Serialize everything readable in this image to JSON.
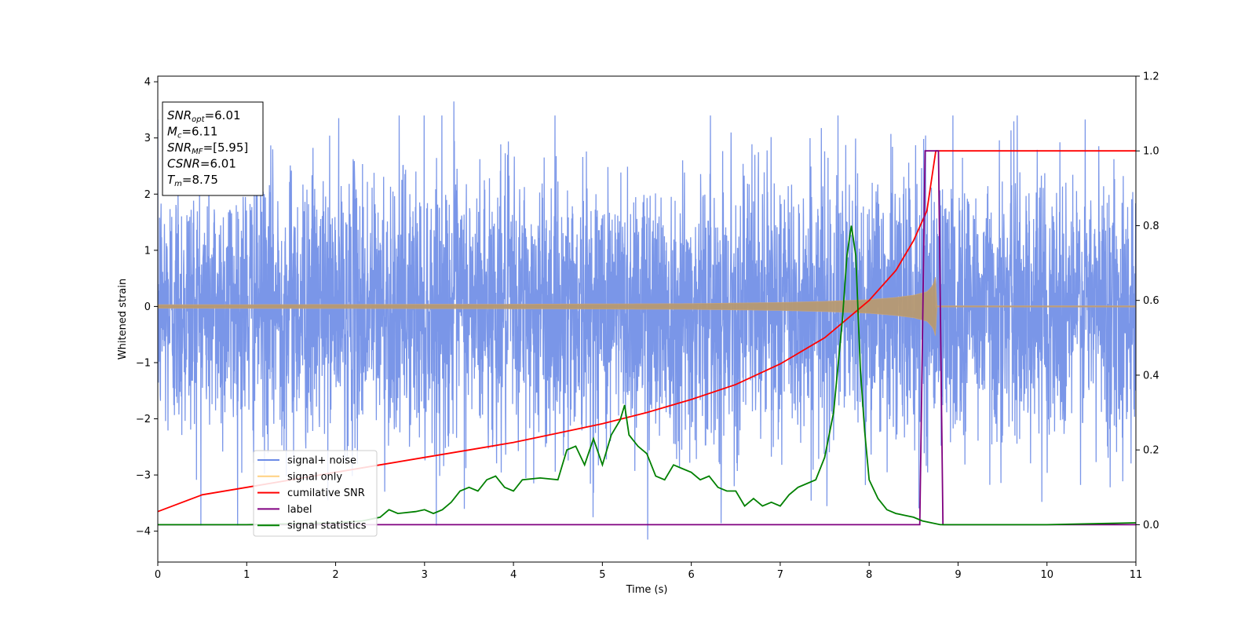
{
  "chart_data": {
    "type": "line",
    "xlabel": "Time (s)",
    "ylabel": "Whitened strain",
    "xlim": [
      0,
      11
    ],
    "ylim_left": [
      -4.55,
      4.1
    ],
    "ylim_right": [
      -0.1,
      1.2
    ],
    "x_ticks": [
      "0",
      "1",
      "2",
      "3",
      "4",
      "5",
      "6",
      "7",
      "8",
      "9",
      "10",
      "11"
    ],
    "y_ticks_left": [
      "−4",
      "−3",
      "−2",
      "−1",
      "0",
      "1",
      "2",
      "3",
      "4"
    ],
    "y_tick_values_left": [
      -4,
      -3,
      -2,
      -1,
      0,
      1,
      2,
      3,
      4
    ],
    "y_ticks_right": [
      "0.0",
      "0.2",
      "0.4",
      "0.6",
      "0.8",
      "1.0",
      "1.2"
    ],
    "y_tick_values_right": [
      0.0,
      0.2,
      0.4,
      0.6,
      0.8,
      1.0,
      1.2
    ],
    "legend_position": "lower-left",
    "annotation_box": {
      "lines": [
        {
          "main": "SNR",
          "sub": "opt",
          "rest": "=6.01"
        },
        {
          "main": "M",
          "sub": "c",
          "rest": "=6.11"
        },
        {
          "main": "SNR",
          "sub": "MF",
          "rest": "=[5.95]"
        },
        {
          "main": "CSNR",
          "sub": "",
          "rest": "=6.01"
        },
        {
          "main": "T",
          "sub": "m",
          "rest": "=8.75"
        }
      ]
    },
    "series": [
      {
        "name": "signal+ noise",
        "color": "#6c8be6",
        "axis": "left",
        "description_free": true,
        "amplitude_typical": 1.2,
        "amplitude_extremes": {
          "max": 3.65,
          "min": -4.15
        },
        "x_range": [
          0,
          11
        ]
      },
      {
        "name": "signal only",
        "color": "#ffd080",
        "axis": "left",
        "envelope": {
          "x": [
            0,
            2,
            4,
            6,
            7,
            7.5,
            8,
            8.3,
            8.5,
            8.65,
            8.72,
            8.75,
            8.76,
            11
          ],
          "amp": [
            0.03,
            0.035,
            0.04,
            0.05,
            0.07,
            0.09,
            0.12,
            0.16,
            0.2,
            0.26,
            0.38,
            0.55,
            0.0,
            0.0
          ]
        }
      },
      {
        "name": "cumilative SNR",
        "color": "#ff0000",
        "axis": "right",
        "x": [
          0,
          0.5,
          1,
          1.5,
          2,
          2.5,
          3,
          3.5,
          4,
          4.5,
          5,
          5.5,
          6,
          6.5,
          7,
          7.5,
          8,
          8.3,
          8.5,
          8.65,
          8.75,
          11
        ],
        "y": [
          0.035,
          0.08,
          0.1,
          0.12,
          0.14,
          0.16,
          0.18,
          0.2,
          0.22,
          0.245,
          0.27,
          0.3,
          0.335,
          0.375,
          0.43,
          0.5,
          0.6,
          0.68,
          0.76,
          0.84,
          1.0,
          1.0
        ]
      },
      {
        "name": "label",
        "color": "#800080",
        "axis": "right",
        "x": [
          0,
          8.57,
          8.63,
          8.78,
          8.83,
          11
        ],
        "y": [
          0.0,
          0.0,
          1.0,
          1.0,
          0.0,
          0.0
        ]
      },
      {
        "name": "signal statistics",
        "color": "#008000",
        "axis": "right",
        "x": [
          0,
          1,
          2,
          2.3,
          2.5,
          2.6,
          2.7,
          2.9,
          3.0,
          3.1,
          3.2,
          3.3,
          3.4,
          3.5,
          3.6,
          3.7,
          3.8,
          3.9,
          4.0,
          4.1,
          4.3,
          4.5,
          4.6,
          4.7,
          4.8,
          4.9,
          5.0,
          5.1,
          5.2,
          5.25,
          5.3,
          5.4,
          5.5,
          5.6,
          5.7,
          5.8,
          5.9,
          6.0,
          6.1,
          6.2,
          6.3,
          6.4,
          6.5,
          6.6,
          6.7,
          6.8,
          6.9,
          7.0,
          7.1,
          7.2,
          7.3,
          7.4,
          7.5,
          7.6,
          7.7,
          7.75,
          7.8,
          7.85,
          7.9,
          7.95,
          8.0,
          8.1,
          8.2,
          8.3,
          8.4,
          8.5,
          8.6,
          8.7,
          8.8,
          9.0,
          10.0,
          11.0
        ],
        "y": [
          0.0,
          0.0,
          0.005,
          0.01,
          0.02,
          0.04,
          0.03,
          0.035,
          0.04,
          0.03,
          0.04,
          0.06,
          0.09,
          0.1,
          0.09,
          0.12,
          0.13,
          0.1,
          0.09,
          0.12,
          0.125,
          0.12,
          0.2,
          0.21,
          0.16,
          0.23,
          0.16,
          0.24,
          0.28,
          0.32,
          0.24,
          0.21,
          0.19,
          0.13,
          0.12,
          0.16,
          0.15,
          0.14,
          0.12,
          0.13,
          0.1,
          0.09,
          0.09,
          0.05,
          0.07,
          0.05,
          0.06,
          0.05,
          0.08,
          0.1,
          0.11,
          0.12,
          0.18,
          0.3,
          0.55,
          0.72,
          0.8,
          0.72,
          0.42,
          0.25,
          0.12,
          0.07,
          0.04,
          0.03,
          0.025,
          0.02,
          0.01,
          0.005,
          0.0,
          0.0,
          0.0,
          0.005
        ]
      }
    ]
  }
}
